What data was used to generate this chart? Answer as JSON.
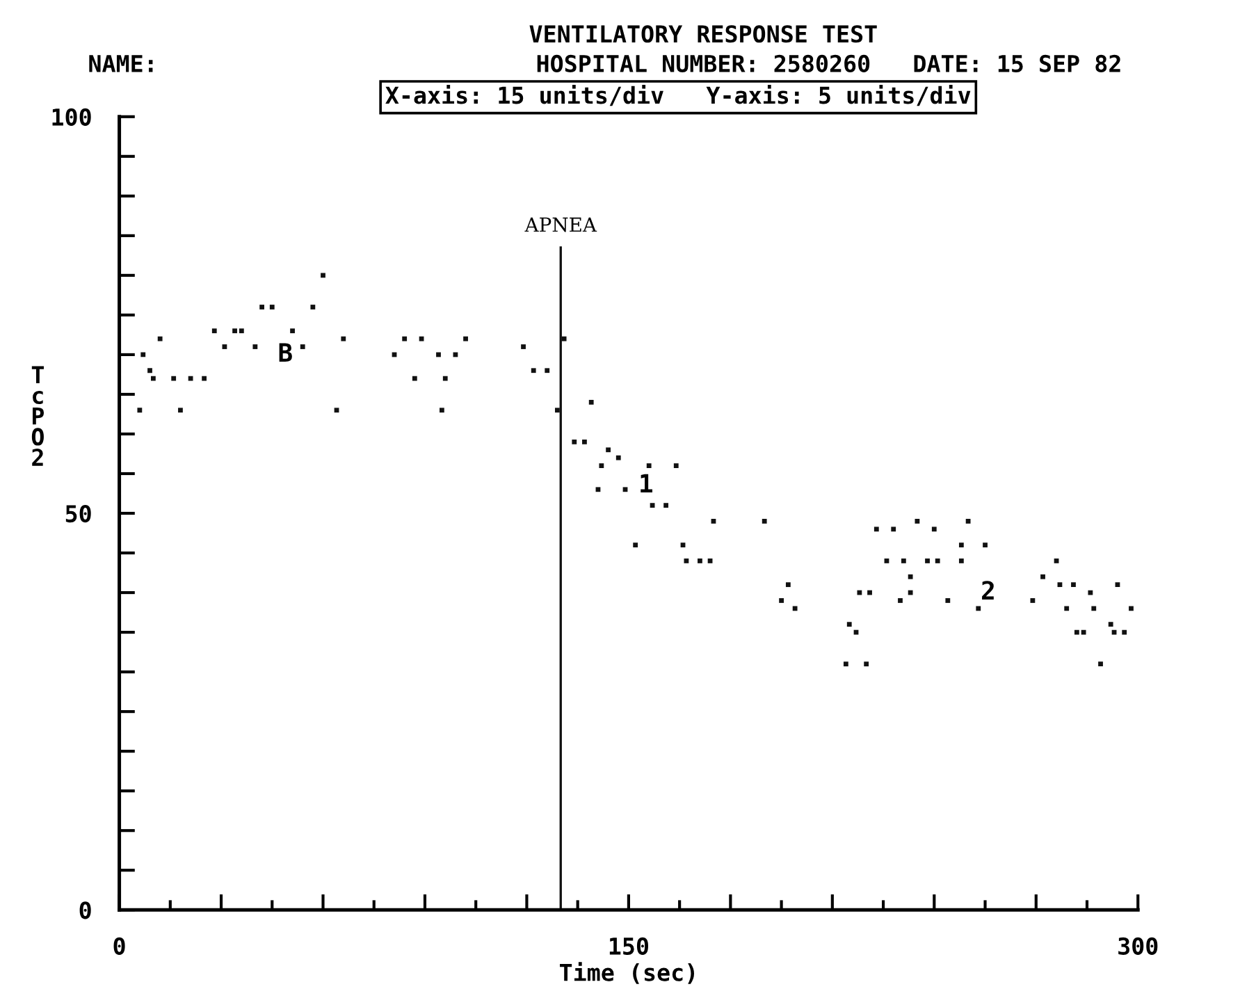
{
  "chart_data": {
    "type": "scatter",
    "title": "VENTILATORY RESPONSE TEST",
    "subtitle": "HOSPITAL NUMBER: 2580260   DATE: 15 SEP 82",
    "xlabel": "Time (sec)",
    "ylabel": "TcPO2",
    "annotations": [
      "NAME:",
      "X-axis: 15 units/div   Y-axis: 5 units/div",
      "B",
      "1",
      "2"
    ],
    "series": [
      {
        "color": "#111111",
        "x": [
          6,
          7,
          9,
          10,
          12,
          16,
          18,
          21,
          25,
          28,
          31,
          34,
          36,
          40,
          42,
          45,
          51,
          54,
          57,
          60,
          64,
          66,
          81,
          84,
          87,
          89,
          94,
          95,
          96,
          99,
          102,
          119,
          122,
          126,
          129,
          131,
          134,
          137,
          139,
          142,
          144,
          147,
          141,
          149,
          156,
          164,
          157,
          161,
          152,
          166,
          167,
          171,
          174,
          175,
          190,
          197,
          195,
          199,
          215,
          217,
          214,
          220,
          218,
          221,
          223,
          228,
          226,
          231,
          230,
          233,
          233,
          235,
          238,
          241,
          240,
          244,
          248,
          248,
          250,
          253,
          255,
          269,
          272,
          276,
          277,
          281,
          279,
          282,
          284,
          286,
          287,
          289,
          292,
          293,
          296,
          294,
          298
        ],
        "values": [
          63,
          70,
          68,
          67,
          72,
          67,
          63,
          67,
          67,
          73,
          71,
          73,
          73,
          71,
          76,
          76,
          73,
          71,
          76,
          80,
          63,
          72,
          70,
          72,
          67,
          72,
          70,
          63,
          67,
          70,
          72,
          71,
          68,
          68,
          63,
          72,
          59,
          59,
          64,
          56,
          58,
          57,
          53,
          53,
          56,
          56,
          51,
          51,
          46,
          46,
          44,
          44,
          44,
          49,
          49,
          41,
          39,
          38,
          36,
          35,
          31,
          31,
          40,
          40,
          48,
          48,
          44,
          44,
          39,
          42,
          40,
          49,
          44,
          44,
          48,
          39,
          44,
          46,
          49,
          38,
          46,
          39,
          42,
          44,
          41,
          41,
          38,
          35,
          35,
          40,
          38,
          31,
          36,
          35,
          35,
          41,
          38
        ]
      }
    ],
    "xlim": [
      0,
      300
    ],
    "ylim": [
      0,
      100
    ],
    "xticks": [
      0,
      {
        "value": 15,
        "label": null
      },
      {
        "value": 30,
        "label": null
      },
      {
        "value": 45,
        "label": null
      },
      {
        "value": 60,
        "label": null
      },
      {
        "value": 75,
        "label": null
      },
      {
        "value": 90,
        "label": null
      },
      {
        "value": 105,
        "label": null
      },
      {
        "value": 120,
        "label": null
      },
      {
        "value": 135,
        "label": null
      },
      150,
      {
        "value": 165,
        "label": null
      },
      {
        "value": 180,
        "label": null
      },
      {
        "value": 195,
        "label": null
      },
      {
        "value": 210,
        "label": null
      },
      {
        "value": 225,
        "label": null
      },
      {
        "value": 240,
        "label": null
      },
      {
        "value": 255,
        "label": null
      },
      {
        "value": 270,
        "label": null
      },
      {
        "value": 285,
        "label": null
      },
      300
    ],
    "yticks": [
      0,
      {
        "value": 5,
        "label": null
      },
      {
        "value": 10,
        "label": null
      },
      {
        "value": 15,
        "label": null
      },
      {
        "value": 20,
        "label": null
      },
      {
        "value": 25,
        "label": null
      },
      {
        "value": 30,
        "label": null
      },
      {
        "value": 35,
        "label": null
      },
      {
        "value": 40,
        "label": null
      },
      {
        "value": 45,
        "label": null
      },
      50,
      {
        "value": 55,
        "label": null
      },
      {
        "value": 60,
        "label": null
      },
      {
        "value": 65,
        "label": null
      },
      {
        "value": 70,
        "label": null
      },
      {
        "value": 75,
        "label": null
      },
      {
        "value": 80,
        "label": null
      },
      {
        "value": 85,
        "label": null
      },
      {
        "value": 90,
        "label": null
      },
      {
        "value": 95,
        "label": null
      },
      100
    ],
    "ref_lines": [
      {
        "axis": "x",
        "value": 130,
        "label": "APNEA",
        "color": "#111111"
      }
    ],
    "marker": "square",
    "grid": false,
    "legend": false
  }
}
